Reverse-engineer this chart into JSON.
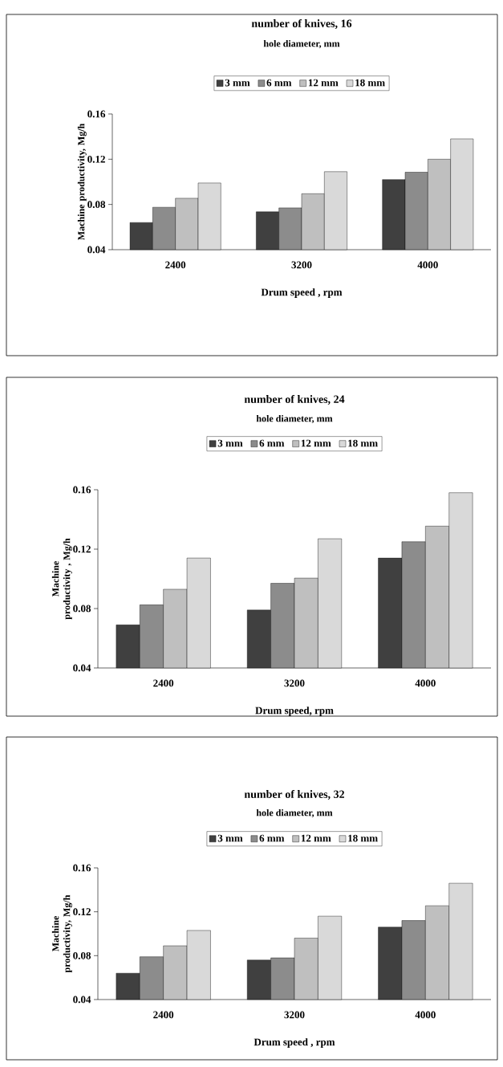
{
  "chart_data": [
    {
      "type": "bar",
      "title": "number of knives, 16",
      "legend_title": "hole diameter, mm",
      "xlabel": "Drum speed , rpm",
      "ylabel": "Machine productivity, Mg/h",
      "categories": [
        "2400",
        "3200",
        "4000"
      ],
      "legend": "top",
      "ylim": [
        0.04,
        0.16
      ],
      "yticks": [
        0.04,
        0.08,
        0.12,
        0.16
      ],
      "series": [
        {
          "name": "3 mm",
          "color": "#404040",
          "values": [
            0.064,
            0.0735,
            0.102
          ]
        },
        {
          "name": "6 mm",
          "color": "#8c8c8c",
          "values": [
            0.0775,
            0.077,
            0.1085
          ]
        },
        {
          "name": "12 mm",
          "color": "#bfbfbf",
          "values": [
            0.0855,
            0.0895,
            0.12
          ]
        },
        {
          "name": "18 mm",
          "color": "#d9d9d9",
          "values": [
            0.099,
            0.109,
            0.138
          ]
        }
      ]
    },
    {
      "type": "bar",
      "title": "number of knives, 24",
      "legend_title": "hole diameter, mm",
      "xlabel": "Drum speed, rpm",
      "ylabel": "Machine productivity , Mg/h",
      "categories": [
        "2400",
        "3200",
        "4000"
      ],
      "legend": "top",
      "ylim": [
        0.04,
        0.16
      ],
      "yticks": [
        0.04,
        0.08,
        0.12,
        0.16
      ],
      "series": [
        {
          "name": "3 mm",
          "color": "#404040",
          "values": [
            0.069,
            0.079,
            0.114
          ]
        },
        {
          "name": "6 mm",
          "color": "#8c8c8c",
          "values": [
            0.0825,
            0.097,
            0.125
          ]
        },
        {
          "name": "12 mm",
          "color": "#bfbfbf",
          "values": [
            0.093,
            0.1005,
            0.1355
          ]
        },
        {
          "name": "18 mm",
          "color": "#d9d9d9",
          "values": [
            0.114,
            0.127,
            0.158
          ]
        }
      ]
    },
    {
      "type": "bar",
      "title": "number of knives, 32",
      "legend_title": "hole diameter, mm",
      "xlabel": "Drum speed , rpm",
      "ylabel": "Machine productivity, Mg/h",
      "categories": [
        "2400",
        "3200",
        "4000"
      ],
      "legend": "top",
      "ylim": [
        0.04,
        0.16
      ],
      "yticks": [
        0.04,
        0.08,
        0.12,
        0.16
      ],
      "series": [
        {
          "name": "3 mm",
          "color": "#404040",
          "values": [
            0.064,
            0.076,
            0.106
          ]
        },
        {
          "name": "6 mm",
          "color": "#8c8c8c",
          "values": [
            0.079,
            0.078,
            0.112
          ]
        },
        {
          "name": "12 mm",
          "color": "#bfbfbf",
          "values": [
            0.089,
            0.096,
            0.1255
          ]
        },
        {
          "name": "18 mm",
          "color": "#d9d9d9",
          "values": [
            0.103,
            0.116,
            0.146
          ]
        }
      ]
    }
  ]
}
